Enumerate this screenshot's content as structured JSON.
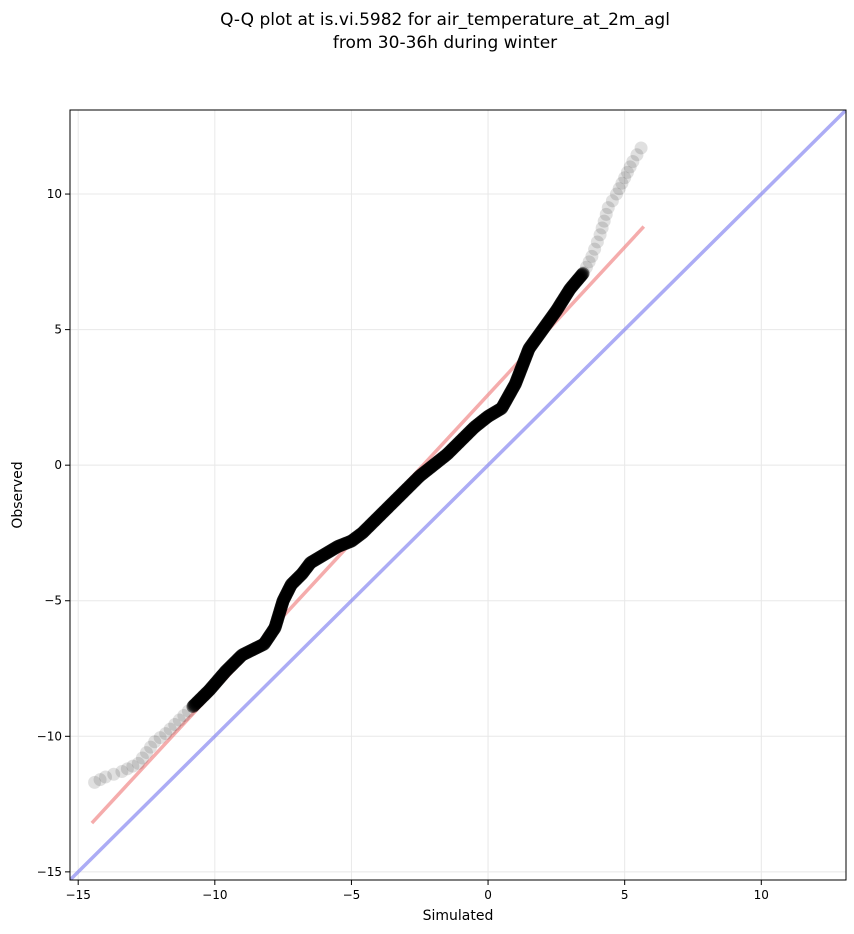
{
  "chart_data": {
    "type": "scatter",
    "title": [
      "Q-Q plot at is.vi.5982 for air_temperature_at_2m_agl",
      "from 30-36h during winter"
    ],
    "xlabel": "Simulated",
    "ylabel": "Observed",
    "xlim": [
      -15.3,
      13.1
    ],
    "ylim": [
      -15.3,
      13.1
    ],
    "xticks": [
      -15,
      -10,
      -5,
      0,
      5,
      10
    ],
    "yticks": [
      -15,
      -10,
      -5,
      0,
      5,
      10
    ],
    "xtick_labels": [
      "−15",
      "−10",
      "−5",
      "0",
      "5",
      "10"
    ],
    "ytick_labels": [
      "−15",
      "−10",
      "−5",
      "0",
      "5",
      "10"
    ],
    "grid": true,
    "series": [
      {
        "kind": "points",
        "color": "#000000",
        "x": [
          -14.4,
          -14.0,
          -13.4,
          -12.8,
          -12.5,
          -12.2,
          -11.8,
          -11.3,
          -10.8,
          -10.2,
          -9.6,
          -9.0,
          -8.6,
          -8.2,
          -7.8,
          -7.5,
          -7.2,
          -6.8,
          -6.5,
          -6.0,
          -5.5,
          -5.0,
          -4.6,
          -4.0,
          -3.5,
          -3.0,
          -2.5,
          -2.0,
          -1.5,
          -1.0,
          -0.5,
          0.0,
          0.5,
          1.0,
          1.5,
          2.0,
          2.5,
          3.0,
          3.5,
          3.8,
          4.1,
          4.4,
          4.7,
          5.0,
          5.3,
          5.6
        ],
        "y": [
          -11.7,
          -11.5,
          -11.3,
          -11.0,
          -10.6,
          -10.2,
          -9.9,
          -9.4,
          -8.9,
          -8.3,
          -7.6,
          -7.0,
          -6.8,
          -6.6,
          -6.0,
          -5.0,
          -4.4,
          -4.0,
          -3.6,
          -3.3,
          -3.0,
          -2.8,
          -2.5,
          -1.9,
          -1.4,
          -0.9,
          -0.4,
          0.0,
          0.4,
          0.9,
          1.4,
          1.8,
          2.1,
          3.0,
          4.3,
          5.0,
          5.7,
          6.5,
          7.1,
          7.7,
          8.5,
          9.5,
          10.0,
          10.6,
          11.2,
          11.7
        ]
      },
      {
        "kind": "line",
        "color": "#f08080",
        "x": [
          -14.5,
          5.7
        ],
        "y": [
          -13.2,
          8.8
        ]
      },
      {
        "kind": "line",
        "color": "#8080f0",
        "x": [
          -15.3,
          13.1
        ],
        "y": [
          -15.3,
          13.1
        ]
      }
    ]
  }
}
